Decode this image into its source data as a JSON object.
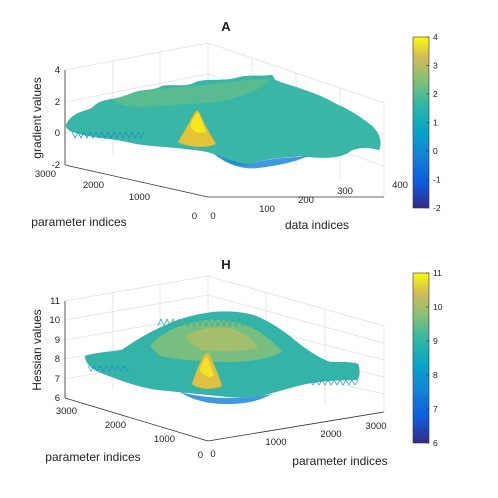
{
  "chart_data": [
    {
      "type": "surface",
      "title": "A",
      "xlabel": "data indices",
      "ylabel": "parameter indices",
      "zlabel": "gradient values",
      "xlim": [
        0,
        400
      ],
      "ylim": [
        0,
        3000
      ],
      "zlim": [
        -2,
        4
      ],
      "xticks": [
        "0",
        "100",
        "200",
        "300",
        "400"
      ],
      "yticks": [
        "0",
        "1000",
        "2000",
        "3000"
      ],
      "zticks": [
        "-2",
        "0",
        "2",
        "4"
      ],
      "colorbar": {
        "min": -2,
        "max": 4,
        "ticks": [
          "-2",
          "-1",
          "0",
          "1",
          "2",
          "3",
          "4"
        ]
      },
      "surface": {
        "base_value": 1.0,
        "peak": {
          "x": 150,
          "y": 2150,
          "value": 3.4
        },
        "trough": {
          "x": 330,
          "y": 500,
          "value": -1.2
        },
        "value_range": [
          -1.5,
          3.4
        ]
      }
    },
    {
      "type": "surface",
      "title": "H",
      "xlabel": "parameter indices",
      "ylabel": "parameter indices",
      "zlabel": "Hessian values",
      "xlim": [
        0,
        3000
      ],
      "ylim": [
        0,
        3000
      ],
      "zlim": [
        6,
        11
      ],
      "xticks": [
        "0",
        "1000",
        "2000",
        "3000"
      ],
      "yticks": [
        "0",
        "1000",
        "2000",
        "3000"
      ],
      "zticks": [
        "6",
        "7",
        "8",
        "9",
        "10",
        "11"
      ],
      "colorbar": {
        "min": 6,
        "max": 11,
        "ticks": [
          "6",
          "7",
          "8",
          "9",
          "10",
          "11"
        ]
      },
      "surface": {
        "base_value": 7.5,
        "central_dome_value": 9.8,
        "peak": {
          "x": 1000,
          "y": 2200,
          "value": 9.9
        },
        "value_range": [
          6.8,
          10.2
        ]
      }
    }
  ]
}
